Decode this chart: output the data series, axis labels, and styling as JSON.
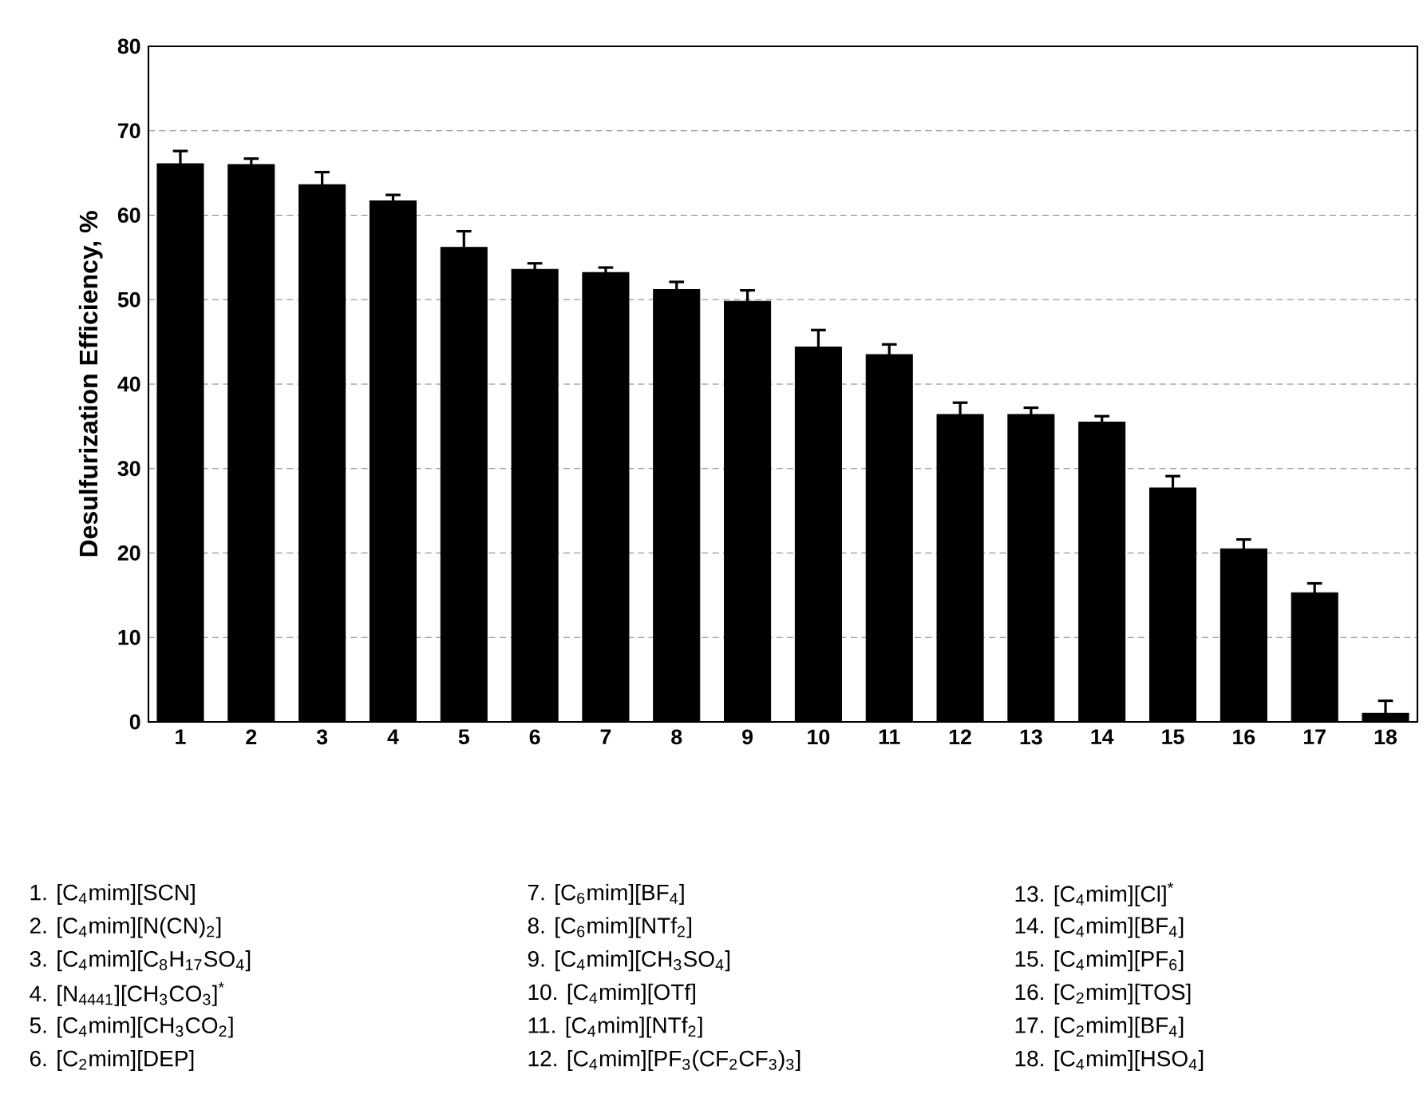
{
  "chart_data": {
    "type": "bar",
    "ylabel": "Desulfurization Efficiency, %",
    "categories": [
      "1",
      "2",
      "3",
      "4",
      "5",
      "6",
      "7",
      "8",
      "9",
      "10",
      "11",
      "12",
      "13",
      "14",
      "15",
      "16",
      "17",
      "18"
    ],
    "values": [
      66.1,
      66.0,
      63.6,
      61.7,
      56.2,
      53.6,
      53.2,
      51.2,
      49.8,
      44.4,
      43.5,
      36.4,
      36.4,
      35.5,
      27.7,
      20.5,
      15.3,
      1.0
    ],
    "errors": [
      1.5,
      0.7,
      1.5,
      0.7,
      1.9,
      0.7,
      0.6,
      0.9,
      1.3,
      2.0,
      1.2,
      1.4,
      0.8,
      0.7,
      1.4,
      1.1,
      1.1,
      1.5
    ],
    "color": "#000000",
    "ylim": [
      0,
      80
    ],
    "yticks": [
      0,
      10,
      20,
      30,
      40,
      50,
      60,
      70,
      80
    ],
    "grid": "y",
    "annotations": [
      "1. [C$_{4}$mim][SCN]",
      "2. [C$_{4}$mim][N(CN)$_{2}$]",
      "3. [C$_{4}$mim][C$_{8}$H$_{17}$SO$_{4}$]",
      "4. [N$_{4441}$][CH$_{3}$CO$_{3}$]$^{*}$",
      "5. [C$_{4}$mim][CH$_{3}$CO$_{2}$]",
      "6. [C$_{2}$mim][DEP]",
      "7. [C$_{6}$mim][BF$_{4}$]",
      "8. [C$_{6}$mim][NTf$_{2}$]",
      "9. [C$_{4}$mim][CH$_{3}$SO$_{4}$]",
      "10. [C$_{4}$mim][OTf]",
      "11. [C$_{4}$mim][NTf$_{2}$]",
      "12. [C$_{4}$mim][PF$_{3}$(CF$_{2}$CF$_{3}$)$_{3}$]",
      "13. [C$_{4}$mim][Cl]$^{*}$",
      "14. [C$_{4}$mim][BF$_{4}$]",
      "15. [C$_{4}$mim][PF$_{6}$]",
      "16. [C$_{2}$mim][TOS]",
      "17. [C$_{2}$mim][BF$_{4}$]",
      "18. [C$_{4}$mim][HSO$_{4}$]"
    ]
  }
}
